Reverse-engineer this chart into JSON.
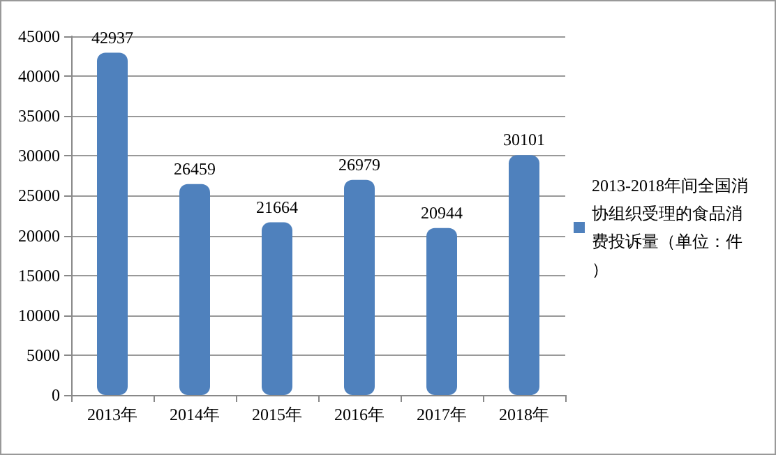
{
  "chart_data": {
    "type": "bar",
    "categories": [
      "2013年",
      "2014年",
      "2015年",
      "2016年",
      "2017年",
      "2018年"
    ],
    "series": [
      {
        "name": "2013-2018年间全国消协组织受理的食品消费投诉量（单位：件）",
        "color": "#4f81bd",
        "values": [
          42937,
          26459,
          21664,
          26979,
          20944,
          30101
        ]
      }
    ],
    "ylim": [
      0,
      45000
    ],
    "yticks": [
      0,
      5000,
      10000,
      15000,
      20000,
      25000,
      30000,
      35000,
      40000,
      45000
    ],
    "grid": "y",
    "legend": "right",
    "data_labels": true
  }
}
